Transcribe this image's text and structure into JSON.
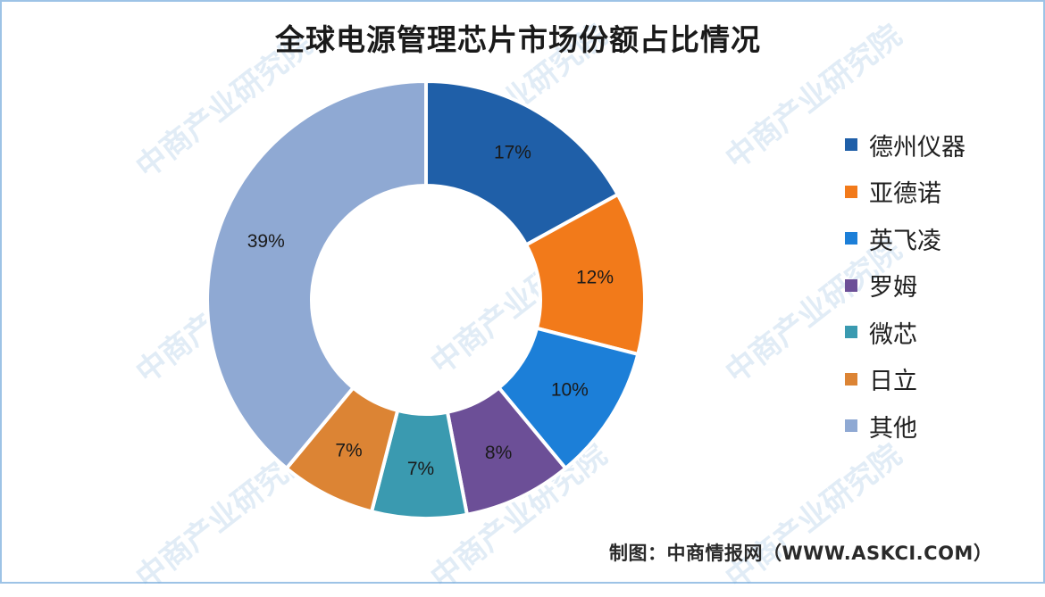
{
  "chart_data": {
    "type": "pie",
    "title": "全球电源管理芯片市场份额占比情况",
    "donut": true,
    "legend_position": "right",
    "slices": [
      {
        "name": "德州仪器",
        "value": 17,
        "label": "17%",
        "color": "#1f5fa8"
      },
      {
        "name": "亚德诺",
        "value": 12,
        "label": "12%",
        "color": "#f27a1a"
      },
      {
        "name": "英飞凌",
        "value": 10,
        "label": "10%",
        "color": "#1c7fd8"
      },
      {
        "name": "罗姆",
        "value": 8,
        "label": "8%",
        "color": "#6c4f97"
      },
      {
        "name": "微芯",
        "value": 7,
        "label": "7%",
        "color": "#3a9ab0"
      },
      {
        "name": "日立",
        "value": 7,
        "label": "7%",
        "color": "#dc8434"
      },
      {
        "name": "其他",
        "value": 39,
        "label": "39%",
        "color": "#8fa9d3"
      }
    ]
  },
  "watermark": {
    "text": "中商产业研究院"
  },
  "source": {
    "text": "制图：中商情报网（WWW.ASKCI.COM）"
  }
}
